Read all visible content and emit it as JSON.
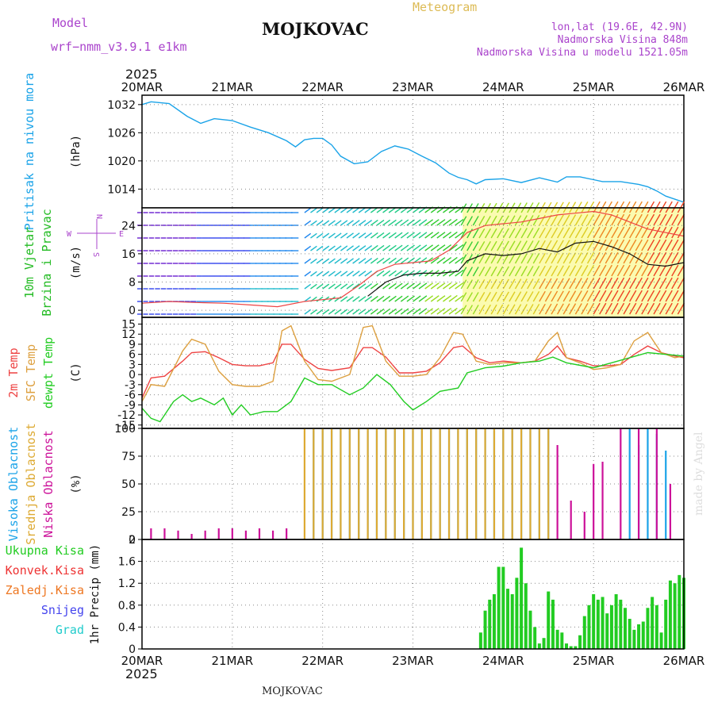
{
  "header": {
    "model_label": "Model",
    "model_name": "wrf−nmm_v3.9.1  e1km",
    "title": "MOJKOVAC",
    "subtitle": "Meteogram",
    "lonlat": "lon,lat (19.6E, 42.9N)",
    "elevation": "Nadmorska Visina 848m",
    "model_elevation": "Nadmorska Visina u modelu 1521.05m",
    "footer": "MOJKOVAC",
    "watermark": "made by Angel",
    "year": "2025"
  },
  "colors": {
    "pressure": "#1aa3e8",
    "wind_label": "#22bb22",
    "temp_2m": "#ee4444",
    "temp_sfc": "#dda040",
    "dewpoint": "#22cc22",
    "cloud_high": "#1aa3e8",
    "cloud_mid": "#ddaa33",
    "cloud_low": "#cc1199",
    "precip_total": "#22cc22",
    "precip_conv": "#ee3333",
    "precip_frz": "#ee7722",
    "precip_snow": "#4444ee",
    "precip_grad": "#22cccc",
    "header_purple": "#aa44cc",
    "header_gold": "#ddbb55"
  },
  "chart_data": {
    "type": "line",
    "x": [
      "20MAR",
      "21MAR",
      "22MAR",
      "23MAR",
      "24MAR",
      "25MAR",
      "26MAR"
    ],
    "panels": [
      {
        "id": "pressure",
        "labels": [
          "Pritisak na nivou mora"
        ],
        "unit": "(hPa)",
        "ylim": [
          1010,
          1034
        ],
        "yticks": [
          1014,
          1020,
          1026,
          1032
        ],
        "series": [
          {
            "name": "Pritisak na nivou mora",
            "color": "#1aa3e8",
            "x": [
              0,
              0.1,
              0.3,
              0.5,
              0.65,
              0.8,
              1.0,
              1.2,
              1.4,
              1.6,
              1.7,
              1.8,
              1.9,
              2.0,
              2.1,
              2.2,
              2.35,
              2.5,
              2.65,
              2.8,
              2.95,
              3.1,
              3.25,
              3.4,
              3.5,
              3.6,
              3.7,
              3.8,
              4.0,
              4.2,
              4.4,
              4.6,
              4.7,
              4.85,
              5.0,
              5.1,
              5.3,
              5.5,
              5.6,
              5.7,
              5.8,
              6.0
            ],
            "y": [
              1032,
              1032.6,
              1032.2,
              1029.5,
              1028,
              1029,
              1028.6,
              1027.2,
              1026,
              1024.3,
              1023,
              1024.5,
              1024.8,
              1024.8,
              1023.4,
              1021,
              1019.4,
              1019.8,
              1022,
              1023.2,
              1022.5,
              1021,
              1019.6,
              1017.4,
              1016.5,
              1016,
              1015.1,
              1016,
              1016.2,
              1015.4,
              1016.4,
              1015.5,
              1016.6,
              1016.6,
              1016,
              1015.6,
              1015.6,
              1015,
              1014.5,
              1013.6,
              1012.5,
              1011.2
            ]
          }
        ]
      },
      {
        "id": "wind",
        "labels": [
          "10m Vjetar",
          "Brzina i Pravac"
        ],
        "unit": "(m/s)",
        "ylim": [
          -2,
          29
        ],
        "yticks": [
          0,
          8,
          16,
          24
        ],
        "compass": [
          "N",
          "W",
          "E",
          "S"
        ],
        "series": [
          {
            "name": "speed",
            "color": "#111111",
            "x": [
              2.5,
              2.7,
              2.9,
              3.1,
              3.3,
              3.5,
              3.6,
              3.8,
              4.0,
              4.2,
              4.4,
              4.6,
              4.8,
              5.0,
              5.2,
              5.4,
              5.6,
              5.8,
              6.0
            ],
            "y": [
              4,
              8,
              10,
              10.5,
              10.5,
              11,
              14,
              16,
              15.5,
              16,
              17.5,
              16.5,
              19,
              19.5,
              18,
              16,
              13,
              12.5,
              13.5
            ]
          },
          {
            "name": "gust",
            "color": "#ee4444",
            "x": [
              0,
              0.3,
              0.6,
              0.9,
              1.2,
              1.5,
              1.8,
              2.0,
              2.2,
              2.4,
              2.6,
              2.8,
              3.0,
              3.2,
              3.4,
              3.6,
              3.8,
              4.0,
              4.2,
              4.4,
              4.6,
              4.8,
              5.0,
              5.2,
              5.4,
              5.6,
              5.8,
              6.0
            ],
            "y": [
              2,
              2.5,
              2.2,
              2,
              1.5,
              1,
              2.5,
              3,
              3.5,
              7,
              11,
              13,
              13.5,
              14,
              17,
              22,
              24,
              24.5,
              25,
              26,
              27,
              27.5,
              28,
              27,
              25,
              23,
              22,
              21
            ]
          }
        ]
      },
      {
        "id": "temperature",
        "labels": [
          "2m Temp",
          "SFC Temp",
          "dewpt Temp"
        ],
        "unit": "(C)",
        "ylim": [
          -16,
          17
        ],
        "yticks": [
          -15,
          -12,
          -9,
          -6,
          -3,
          0,
          3,
          6,
          9,
          12,
          15
        ],
        "series": [
          {
            "name": "2m Temp",
            "color": "#ee4444",
            "x": [
              0,
              0.1,
              0.25,
              0.45,
              0.55,
              0.7,
              0.85,
              1.0,
              1.15,
              1.3,
              1.45,
              1.55,
              1.65,
              1.8,
              1.95,
              2.1,
              2.3,
              2.45,
              2.55,
              2.7,
              2.85,
              3.0,
              3.15,
              3.3,
              3.45,
              3.55,
              3.7,
              3.85,
              4.0,
              4.2,
              4.35,
              4.5,
              4.6,
              4.7,
              4.85,
              5.0,
              5.15,
              5.3,
              5.45,
              5.6,
              5.75,
              5.9,
              6.0
            ],
            "y": [
              -7,
              -1,
              -0.5,
              4,
              6.5,
              6.8,
              5,
              3,
              2.6,
              2.6,
              3.5,
              9,
              9,
              4.5,
              1.8,
              1.2,
              2,
              8,
              8,
              5.2,
              0.5,
              0.5,
              1,
              3.5,
              8,
              8.5,
              5,
              3.5,
              4,
              3.5,
              4,
              6,
              8.5,
              5,
              4,
              2.6,
              2.6,
              3,
              6,
              8.5,
              6.5,
              5.5,
              5
            ]
          },
          {
            "name": "SFC Temp",
            "color": "#dda040",
            "x": [
              0,
              0.1,
              0.25,
              0.45,
              0.55,
              0.7,
              0.85,
              1.0,
              1.15,
              1.3,
              1.45,
              1.55,
              1.65,
              1.8,
              1.95,
              2.1,
              2.3,
              2.45,
              2.55,
              2.7,
              2.85,
              3.0,
              3.15,
              3.3,
              3.45,
              3.55,
              3.7,
              3.85,
              4.0,
              4.2,
              4.35,
              4.5,
              4.6,
              4.7,
              4.85,
              5.0,
              5.15,
              5.3,
              5.45,
              5.6,
              5.75,
              5.9,
              6.0
            ],
            "y": [
              -8,
              -3,
              -3.5,
              7,
              10.5,
              9,
              1,
              -3,
              -3.5,
              -3.5,
              -2,
              13,
              14.5,
              4,
              -1.5,
              -2,
              0,
              14,
              14.5,
              4,
              -0.5,
              -0.5,
              0,
              5,
              12.5,
              12,
              4,
              3,
              3.5,
              3.5,
              4,
              10,
              12.5,
              5,
              3.5,
              1.5,
              2,
              3,
              10,
              12.5,
              6.5,
              5,
              5.5
            ]
          },
          {
            "name": "dewpt Temp",
            "color": "#22cc22",
            "x": [
              0,
              0.1,
              0.2,
              0.25,
              0.35,
              0.45,
              0.55,
              0.65,
              0.8,
              0.9,
              1.0,
              1.1,
              1.2,
              1.35,
              1.5,
              1.65,
              1.8,
              1.95,
              2.1,
              2.3,
              2.45,
              2.6,
              2.75,
              2.9,
              3.0,
              3.15,
              3.3,
              3.5,
              3.6,
              3.8,
              4.0,
              4.2,
              4.4,
              4.55,
              4.7,
              4.9,
              5.0,
              5.2,
              5.4,
              5.6,
              5.8,
              6.0
            ],
            "y": [
              -10,
              -13,
              -14,
              -12,
              -8,
              -6,
              -8,
              -7,
              -9,
              -7,
              -12,
              -9,
              -12,
              -11,
              -11,
              -8,
              -1,
              -3,
              -3,
              -6,
              -4,
              0,
              -3,
              -8,
              -10.5,
              -8,
              -5,
              -4,
              0.5,
              2,
              2.5,
              3.5,
              4,
              5.2,
              3.5,
              2.5,
              2,
              3.5,
              5,
              6.5,
              6,
              5.5
            ]
          }
        ]
      },
      {
        "id": "clouds",
        "labels": [
          "Visoka Oblacnost",
          "Srednja Oblacnost",
          "Niska Oblacnost"
        ],
        "unit": "(%)",
        "ylim": [
          0,
          100
        ],
        "yticks": [
          0,
          25,
          50,
          75,
          100
        ],
        "series": [
          {
            "name": "Visoka Oblacnost",
            "color": "#1aa3e8",
            "x": [
              1.9,
              2.0,
              2.1,
              2.2,
              2.3,
              2.4,
              2.5,
              2.6,
              2.7,
              2.8,
              2.9,
              3.0,
              3.1,
              3.2,
              3.3,
              3.4,
              3.5,
              3.6,
              3.7,
              3.8,
              3.9,
              4.0,
              4.1,
              4.2,
              4.3,
              4.4,
              4.5,
              5.4,
              5.5,
              5.6,
              5.7,
              5.8
            ],
            "y": [
              100,
              100,
              100,
              100,
              100,
              100,
              100,
              100,
              100,
              100,
              100,
              100,
              100,
              100,
              100,
              100,
              100,
              100,
              100,
              100,
              100,
              100,
              100,
              100,
              100,
              100,
              100,
              100,
              85,
              100,
              95,
              80
            ]
          },
          {
            "name": "Srednja Oblacnost",
            "color": "#ddaa33",
            "x": [
              1.8,
              1.9,
              2.0,
              2.1,
              2.2,
              2.3,
              2.4,
              2.5,
              2.6,
              2.7,
              2.8,
              2.9,
              3.0,
              3.1,
              3.2,
              3.3,
              3.4,
              3.5,
              3.6,
              3.7,
              3.8,
              3.9,
              4.0,
              4.1,
              4.2,
              4.3,
              4.4,
              4.5
            ],
            "y": [
              100,
              100,
              100,
              100,
              100,
              100,
              100,
              100,
              100,
              100,
              100,
              100,
              100,
              100,
              100,
              100,
              100,
              100,
              100,
              100,
              100,
              100,
              100,
              100,
              100,
              100,
              100,
              100
            ]
          },
          {
            "name": "Niska Oblacnost",
            "color": "#cc1199",
            "x": [
              0.1,
              0.25,
              0.4,
              0.55,
              0.7,
              0.85,
              1.0,
              1.15,
              1.3,
              1.45,
              1.6,
              4.6,
              4.75,
              4.9,
              5.0,
              5.1,
              5.3,
              5.5,
              5.7,
              5.85
            ],
            "y": [
              10,
              10,
              8,
              5,
              8,
              10,
              10,
              8,
              10,
              8,
              10,
              85,
              35,
              25,
              68,
              70,
              100,
              100,
              100,
              50
            ]
          }
        ]
      },
      {
        "id": "precip",
        "labels": [
          "Ukupna Kisa",
          "Konvek.Kisa",
          "Zaledj.Kisa",
          "Snijeg",
          "Grad"
        ],
        "label_colors": [
          "#22cc22",
          "#ee3333",
          "#ee7722",
          "#4444ee",
          "#22cccc"
        ],
        "unit": "1hr Precip (mm)",
        "ylim": [
          0,
          2
        ],
        "yticks": [
          0,
          0.4,
          0.8,
          1.2,
          1.6,
          2
        ],
        "series": [
          {
            "name": "Ukupna Kisa",
            "color": "#22cc22",
            "x": [
              3.75,
              3.8,
              3.85,
              3.9,
              3.95,
              4.0,
              4.05,
              4.1,
              4.15,
              4.2,
              4.25,
              4.3,
              4.35,
              4.4,
              4.45,
              4.5,
              4.55,
              4.6,
              4.65,
              4.7,
              4.75,
              4.8,
              4.85,
              4.9,
              4.95,
              5.0,
              5.05,
              5.1,
              5.15,
              5.2,
              5.25,
              5.3,
              5.35,
              5.4,
              5.45,
              5.5,
              5.55,
              5.6,
              5.65,
              5.7,
              5.75,
              5.8,
              5.85,
              5.9,
              5.95,
              6.0
            ],
            "y": [
              0.3,
              0.7,
              0.9,
              1.0,
              1.5,
              1.5,
              1.1,
              1.0,
              1.3,
              1.85,
              1.2,
              0.7,
              0.4,
              0.1,
              0.2,
              1.05,
              0.9,
              0.35,
              0.3,
              0.1,
              0.05,
              0.05,
              0.25,
              0.6,
              0.8,
              1.0,
              0.9,
              0.95,
              0.65,
              0.8,
              1.0,
              0.9,
              0.75,
              0.55,
              0.35,
              0.45,
              0.5,
              0.75,
              0.95,
              0.8,
              0.3,
              0.9,
              1.25,
              1.2,
              1.35,
              1.3
            ]
          }
        ]
      }
    ]
  }
}
